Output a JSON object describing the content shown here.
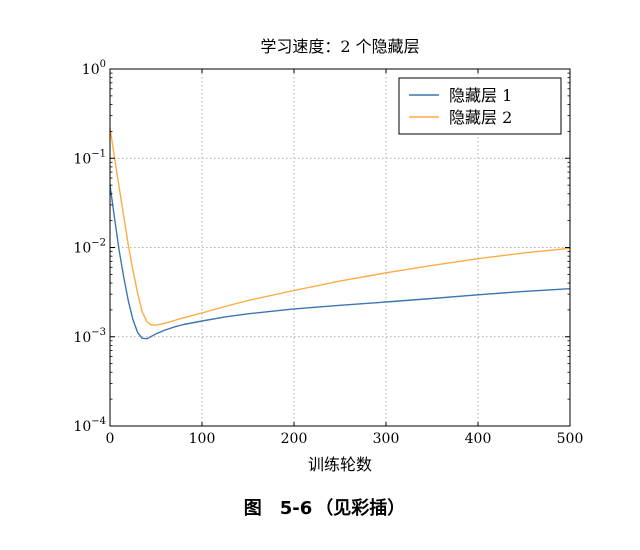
{
  "figure_caption": {
    "label": "图",
    "number": "5-6",
    "note": "（见彩插）"
  },
  "chart_data": {
    "type": "line",
    "title": "学习速度：2 个隐藏层",
    "xlabel": "训练轮数",
    "ylabel": "",
    "xlim": [
      0,
      500
    ],
    "ylim": [
      0.0001,
      1
    ],
    "yscale": "log",
    "grid": true,
    "legend_position": "top-right",
    "x_ticks": [
      0,
      100,
      200,
      300,
      400,
      500
    ],
    "y_ticks": [
      {
        "value": 0.0001,
        "base": "10",
        "exp": "−4"
      },
      {
        "value": 0.001,
        "base": "10",
        "exp": "−3"
      },
      {
        "value": 0.01,
        "base": "10",
        "exp": "−2"
      },
      {
        "value": 0.1,
        "base": "10",
        "exp": "−1"
      },
      {
        "value": 1,
        "base": "10",
        "exp": "0"
      }
    ],
    "series": [
      {
        "name": "隐藏层 1",
        "color": "#3d76b0",
        "x": [
          0,
          5,
          10,
          15,
          20,
          25,
          30,
          35,
          40,
          45,
          50,
          60,
          70,
          80,
          100,
          125,
          150,
          200,
          250,
          300,
          350,
          400,
          450,
          500
        ],
        "y": [
          0.05,
          0.021,
          0.0092,
          0.0046,
          0.0025,
          0.00155,
          0.00112,
          0.00096,
          0.00095,
          0.00101,
          0.00108,
          0.00119,
          0.00129,
          0.00137,
          0.0015,
          0.00167,
          0.00181,
          0.00205,
          0.00225,
          0.00245,
          0.00268,
          0.00295,
          0.00322,
          0.00345
        ]
      },
      {
        "name": "隐藏层 2",
        "color": "#fdac43",
        "x": [
          0,
          5,
          10,
          15,
          20,
          25,
          30,
          35,
          40,
          45,
          50,
          60,
          70,
          80,
          100,
          125,
          150,
          200,
          250,
          300,
          350,
          400,
          450,
          500
        ],
        "y": [
          0.22,
          0.1,
          0.047,
          0.022,
          0.0105,
          0.0055,
          0.0031,
          0.0019,
          0.00148,
          0.00135,
          0.00135,
          0.00142,
          0.00152,
          0.00163,
          0.00185,
          0.00218,
          0.00255,
          0.0033,
          0.0042,
          0.0052,
          0.0063,
          0.0075,
          0.0087,
          0.0098
        ]
      }
    ]
  }
}
